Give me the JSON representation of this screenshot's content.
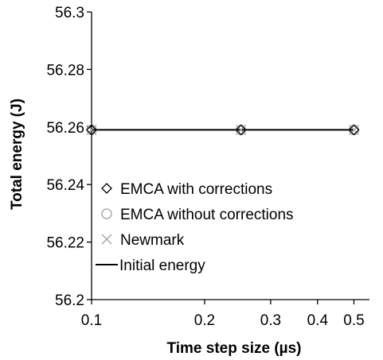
{
  "chart_data": {
    "type": "scatter",
    "title": "",
    "xlabel": "Time step size (µs)",
    "ylabel": "Total energy (J)",
    "xscale": "log",
    "xlim": [
      0.1,
      0.55
    ],
    "ylim": [
      56.2,
      56.3
    ],
    "xticks": [
      0.1,
      0.2,
      0.3,
      0.4,
      0.5
    ],
    "xtick_labels": [
      "0.1",
      "0.2",
      "0.3",
      "0.4",
      "0.5"
    ],
    "yticks": [
      56.2,
      56.22,
      56.24,
      56.26,
      56.28,
      56.3
    ],
    "ytick_labels": [
      "56.2",
      "56.22",
      "56.24",
      "56.26",
      "56.28",
      "56.3"
    ],
    "grid": false,
    "legend_position": "lower-left",
    "series": [
      {
        "name": "EMCA with corrections",
        "marker": "diamond",
        "color": "#000000",
        "x": [
          0.1,
          0.25,
          0.5
        ],
        "y": [
          56.259,
          56.259,
          56.259
        ]
      },
      {
        "name": "EMCA without corrections",
        "marker": "circle",
        "color": "#a0a0a0",
        "x": [
          0.1,
          0.25,
          0.5
        ],
        "y": [
          56.259,
          56.259,
          56.259
        ]
      },
      {
        "name": "Newmark",
        "marker": "x",
        "color": "#a0a0a0",
        "x": [
          0.1,
          0.25,
          0.5
        ],
        "y": [
          56.259,
          56.259,
          56.259
        ]
      },
      {
        "name": "Initial energy",
        "marker": "line",
        "color": "#000000",
        "x": [
          0.1,
          0.5
        ],
        "y": [
          56.259,
          56.259
        ]
      }
    ]
  }
}
